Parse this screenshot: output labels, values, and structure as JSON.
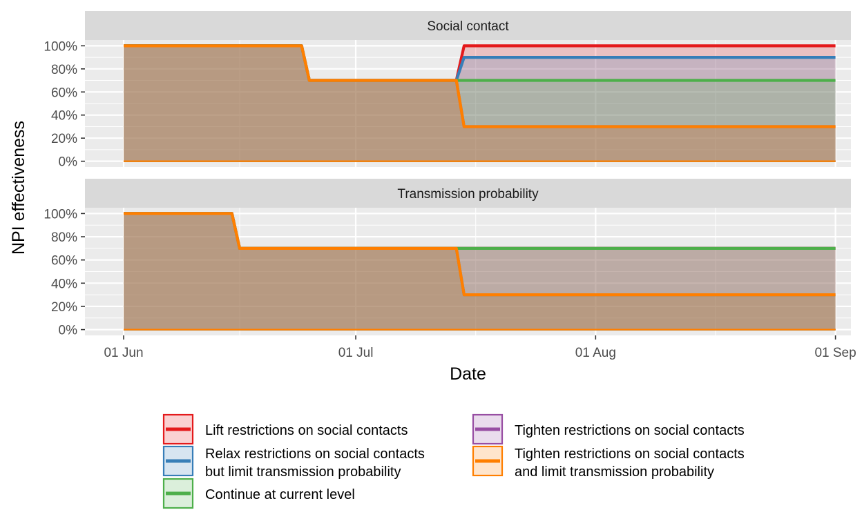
{
  "chart_data": {
    "type": "area",
    "xlabel": "Date",
    "ylabel": "NPI effectiveness",
    "x_ticks": [
      "2020-06-01",
      "2020-07-01",
      "2020-08-01",
      "2020-09-01"
    ],
    "x_tick_labels": [
      "01 Jun",
      "01 Jul",
      "01 Aug",
      "01 Sep"
    ],
    "xlim": [
      "2020-05-27",
      "2020-09-03"
    ],
    "ylim": [
      -0.05,
      1.05
    ],
    "y_ticks": [
      0,
      0.2,
      0.4,
      0.6,
      0.8,
      1.0
    ],
    "y_tick_labels": [
      "0%",
      "20%",
      "40%",
      "60%",
      "80%",
      "100%"
    ],
    "grid": true,
    "legend_position": "bottom",
    "colors": {
      "lift": "#E41A1C",
      "relax": "#377EB8",
      "continue": "#4DAF4A",
      "tighten": "#984EA3",
      "tighten_limit": "#FF7F00",
      "panel_bg": "#EBEBEB",
      "strip_bg": "#D9D9D9",
      "grid": "#FFFFFF"
    },
    "legend": [
      {
        "key": "lift",
        "label_lines": [
          "Lift restrictions on social contacts"
        ]
      },
      {
        "key": "tighten",
        "label_lines": [
          "Tighten restrictions on social contacts"
        ]
      },
      {
        "key": "relax",
        "label_lines": [
          "Relax restrictions on social contacts",
          "but limit transmission probability"
        ]
      },
      {
        "key": "tighten_limit",
        "label_lines": [
          "Tighten restrictions on social contacts",
          "and limit transmission probability"
        ]
      },
      {
        "key": "continue",
        "label_lines": [
          "Continue at current level"
        ]
      }
    ],
    "panels": [
      {
        "title": "Social contact",
        "series": [
          {
            "key": "lift",
            "x": [
              "2020-06-01",
              "2020-06-24",
              "2020-06-25",
              "2020-07-14",
              "2020-07-15",
              "2020-09-01"
            ],
            "y": [
              1.0,
              1.0,
              0.7,
              0.7,
              1.0,
              1.0
            ]
          },
          {
            "key": "relax",
            "x": [
              "2020-06-01",
              "2020-06-24",
              "2020-06-25",
              "2020-07-14",
              "2020-07-15",
              "2020-09-01"
            ],
            "y": [
              1.0,
              1.0,
              0.7,
              0.7,
              0.9,
              0.9
            ]
          },
          {
            "key": "continue",
            "x": [
              "2020-06-01",
              "2020-06-24",
              "2020-06-25",
              "2020-07-14",
              "2020-07-15",
              "2020-09-01"
            ],
            "y": [
              1.0,
              1.0,
              0.7,
              0.7,
              0.7,
              0.7
            ]
          },
          {
            "key": "tighten",
            "x": [
              "2020-06-01",
              "2020-06-24",
              "2020-06-25",
              "2020-07-14",
              "2020-07-15",
              "2020-09-01"
            ],
            "y": [
              1.0,
              1.0,
              0.7,
              0.7,
              0.3,
              0.3
            ]
          },
          {
            "key": "tighten_limit",
            "x": [
              "2020-06-01",
              "2020-06-24",
              "2020-06-25",
              "2020-07-14",
              "2020-07-15",
              "2020-09-01"
            ],
            "y": [
              1.0,
              1.0,
              0.7,
              0.7,
              0.3,
              0.3
            ]
          }
        ]
      },
      {
        "title": "Transmission probability",
        "series": [
          {
            "key": "lift",
            "x": [
              "2020-06-01",
              "2020-06-15",
              "2020-06-16",
              "2020-07-14",
              "2020-07-15",
              "2020-09-01"
            ],
            "y": [
              1.0,
              1.0,
              0.7,
              0.7,
              0.7,
              0.7
            ]
          },
          {
            "key": "relax",
            "x": [
              "2020-06-01",
              "2020-06-15",
              "2020-06-16",
              "2020-07-14",
              "2020-07-15",
              "2020-09-01"
            ],
            "y": [
              1.0,
              1.0,
              0.7,
              0.7,
              0.3,
              0.3
            ]
          },
          {
            "key": "continue",
            "x": [
              "2020-06-01",
              "2020-06-15",
              "2020-06-16",
              "2020-07-14",
              "2020-07-15",
              "2020-09-01"
            ],
            "y": [
              1.0,
              1.0,
              0.7,
              0.7,
              0.7,
              0.7
            ]
          },
          {
            "key": "tighten",
            "x": [
              "2020-06-01",
              "2020-06-15",
              "2020-06-16",
              "2020-07-14",
              "2020-07-15",
              "2020-09-01"
            ],
            "y": [
              1.0,
              1.0,
              0.7,
              0.7,
              0.7,
              0.7
            ]
          },
          {
            "key": "tighten_limit",
            "x": [
              "2020-06-01",
              "2020-06-15",
              "2020-06-16",
              "2020-07-14",
              "2020-07-15",
              "2020-09-01"
            ],
            "y": [
              1.0,
              1.0,
              0.7,
              0.7,
              0.3,
              0.3
            ]
          }
        ]
      }
    ]
  }
}
